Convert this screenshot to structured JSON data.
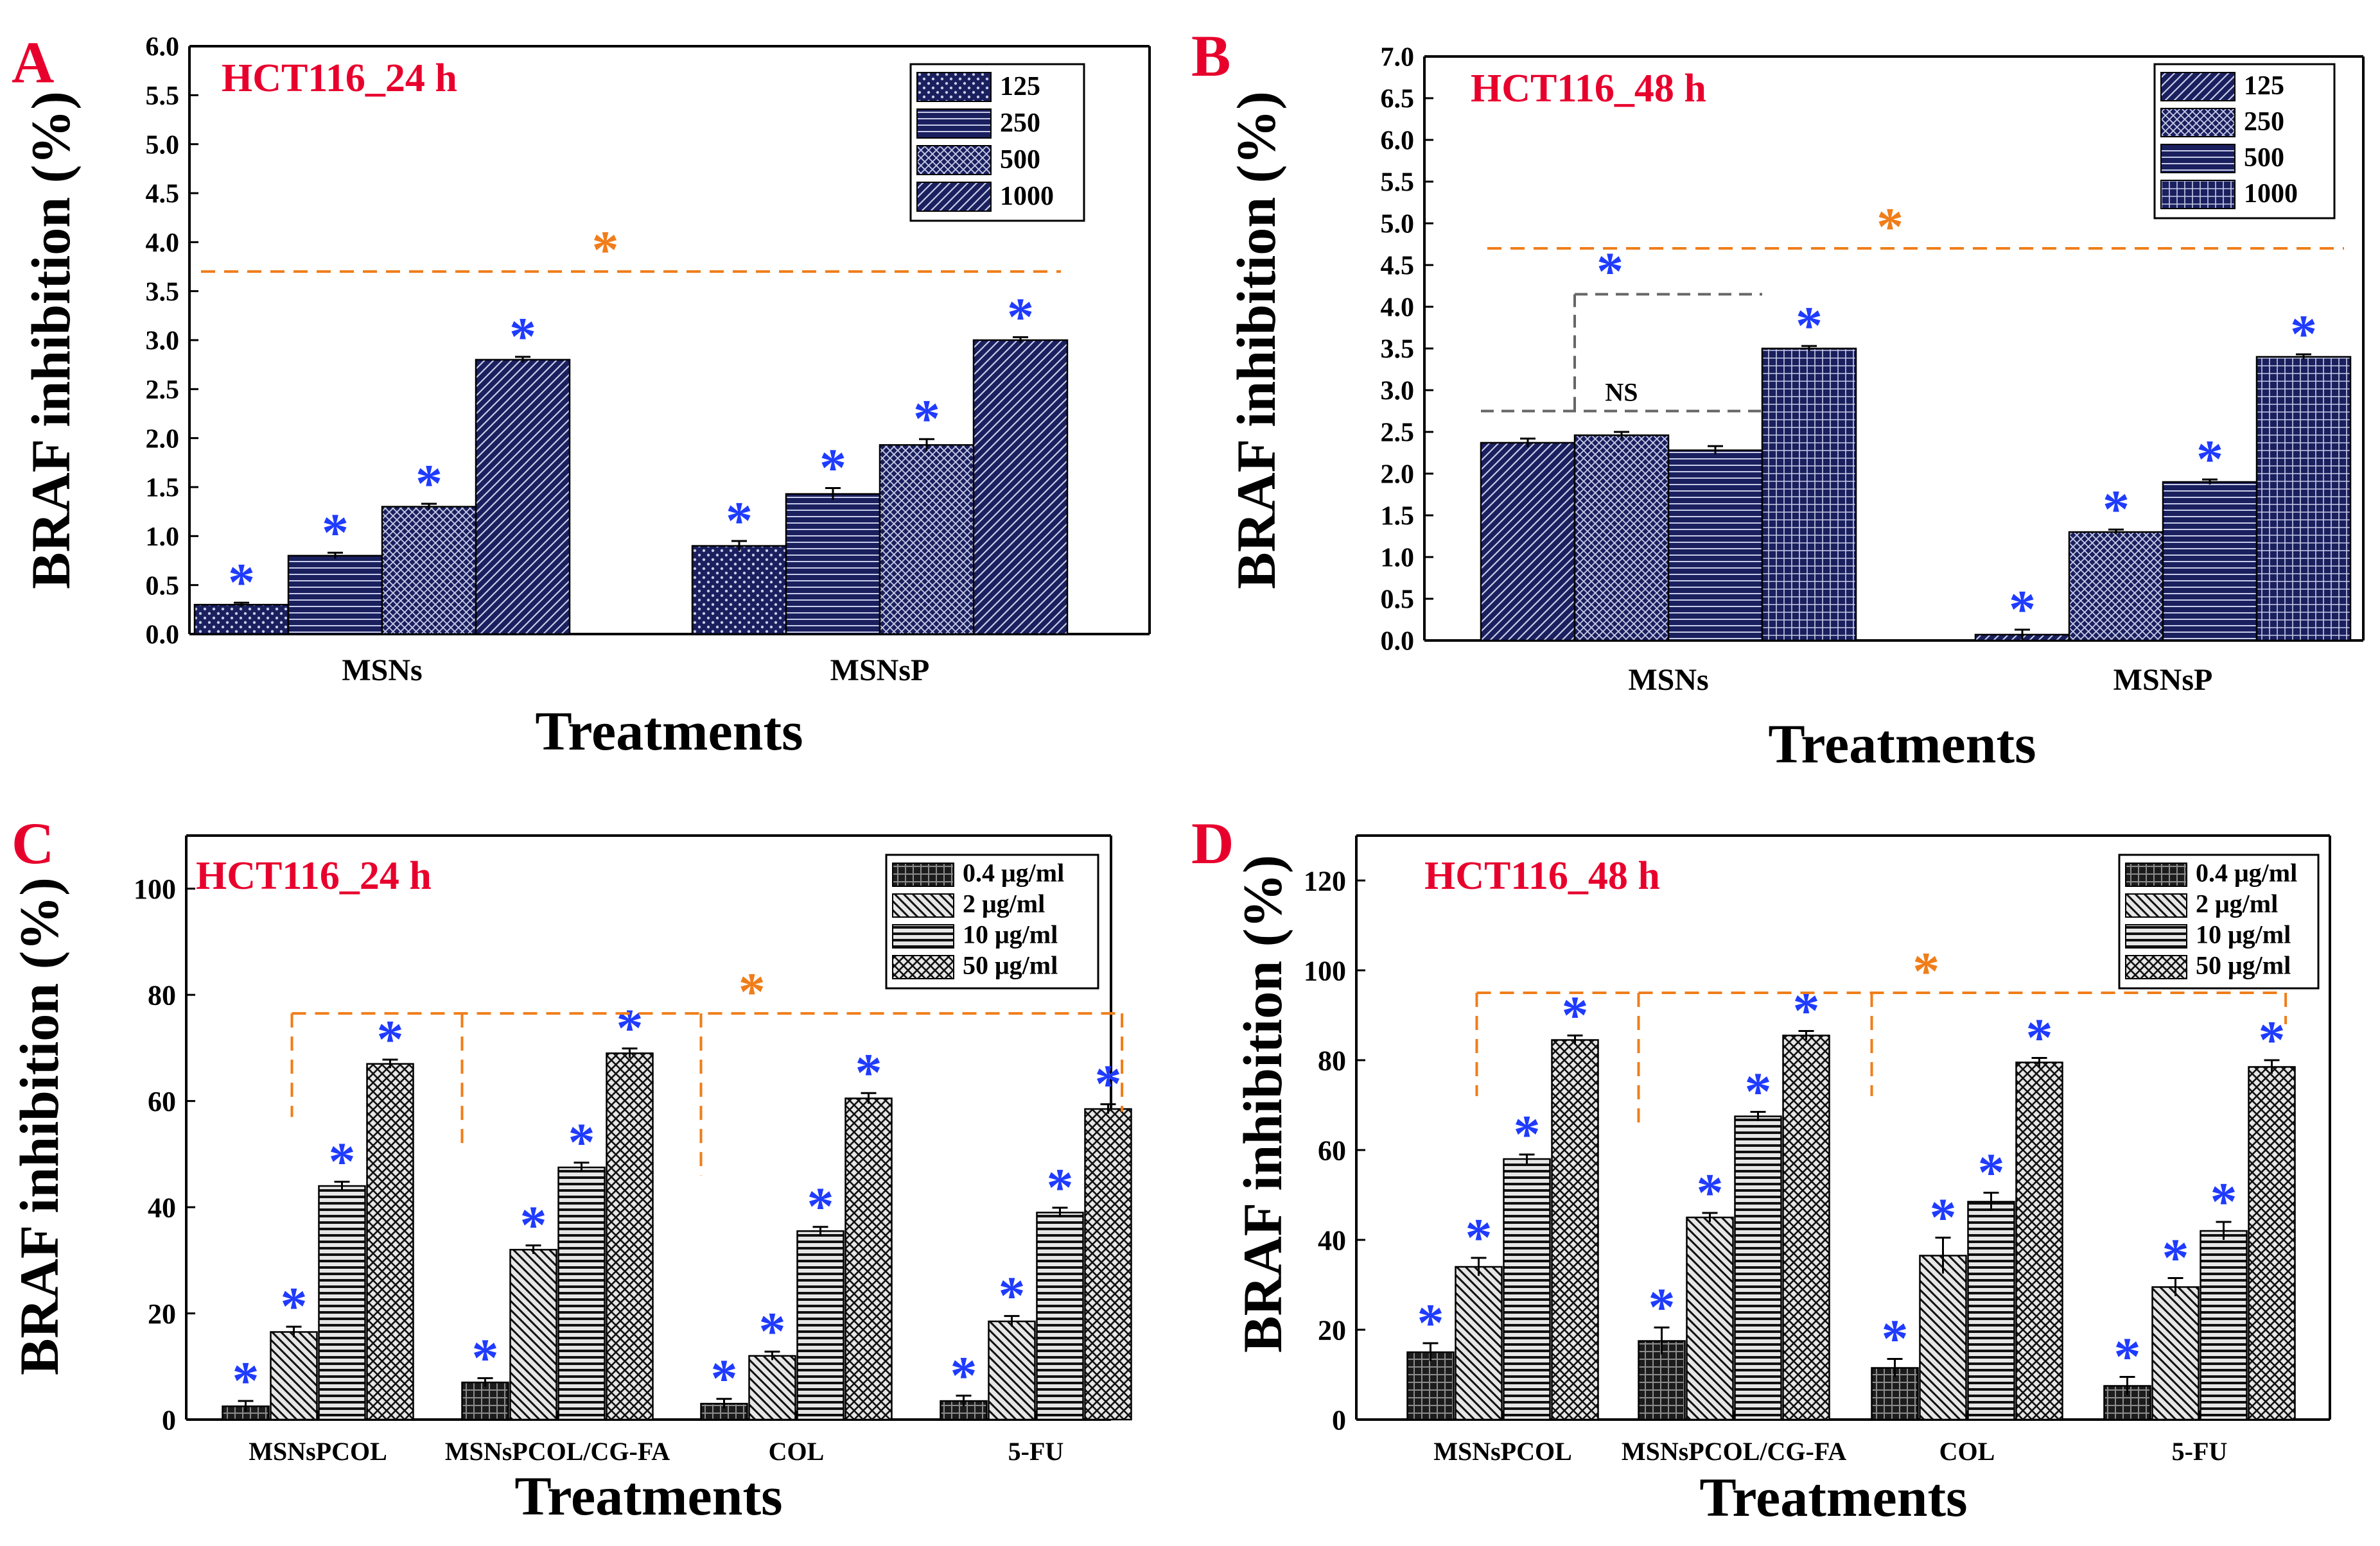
{
  "figure": {
    "xlabel": "Treatments",
    "ylabel": "BRAF inhibition (%)",
    "significance_symbol": "*",
    "ns_label": "NS",
    "colors": {
      "bar_fill": "#1a1f5e",
      "bar_fill_light": "#e6e6e6",
      "hatch_on_dark": "#c8cce8",
      "hatch_on_light": "#111111",
      "panel_letter": "#e8002d",
      "panel_title": "#e8002d",
      "significance": "#1f3bff",
      "group_significance": "#f07d1a",
      "ns_bracket": "#666666",
      "axis": "#000000"
    }
  },
  "chart_data": [
    {
      "panel": "A",
      "title": "HCT116_24 h",
      "type": "bar",
      "xlabel": "Treatments",
      "ylabel": "BRAF inhibition (%)",
      "categories": [
        "MSNs",
        "MSNsP"
      ],
      "ylim": [
        0,
        6.0
      ],
      "yticks": [
        "0.0",
        "0.5",
        "1.0",
        "1.5",
        "2.0",
        "2.5",
        "3.0",
        "3.5",
        "4.0",
        "4.5",
        "5.0",
        "5.5",
        "6.0"
      ],
      "legend_position": "top-right",
      "legend_style": "dark",
      "series": [
        {
          "name": "125",
          "pattern": "dots",
          "values": [
            0.3,
            0.9
          ],
          "errors": [
            0.02,
            0.05
          ],
          "sig": [
            true,
            true
          ]
        },
        {
          "name": "250",
          "pattern": "hlines",
          "values": [
            0.8,
            1.43
          ],
          "errors": [
            0.03,
            0.06
          ],
          "sig": [
            true,
            true
          ]
        },
        {
          "name": "500",
          "pattern": "crosshatch",
          "values": [
            1.3,
            1.93
          ],
          "errors": [
            0.03,
            0.06
          ],
          "sig": [
            true,
            true
          ]
        },
        {
          "name": "1000",
          "pattern": "diag",
          "values": [
            2.8,
            3.0
          ],
          "errors": [
            0.03,
            0.03
          ],
          "sig": [
            true,
            true
          ]
        }
      ],
      "group_significance": {
        "y": 3.7,
        "label": "*"
      }
    },
    {
      "panel": "B",
      "title": "HCT116_48 h",
      "type": "bar",
      "xlabel": "Treatments",
      "ylabel": "BRAF inhibition (%)",
      "categories": [
        "MSNs",
        "MSNsP"
      ],
      "ylim": [
        0,
        7.0
      ],
      "yticks": [
        "0.0",
        "0.5",
        "1.0",
        "1.5",
        "2.0",
        "2.5",
        "3.0",
        "3.5",
        "4.0",
        "4.5",
        "5.0",
        "5.5",
        "6.0",
        "6.5",
        "7.0"
      ],
      "legend_position": "top-right",
      "legend_style": "dark",
      "series": [
        {
          "name": "125",
          "pattern": "diag",
          "values": [
            2.37,
            0.07
          ],
          "errors": [
            0.05,
            0.06
          ],
          "sig": [
            false,
            true
          ]
        },
        {
          "name": "250",
          "pattern": "crosshatch",
          "values": [
            2.46,
            1.3
          ],
          "errors": [
            0.04,
            0.03
          ],
          "sig": [
            false,
            true
          ]
        },
        {
          "name": "500",
          "pattern": "hlines",
          "values": [
            2.28,
            1.9
          ],
          "errors": [
            0.05,
            0.03
          ],
          "sig": [
            false,
            true
          ]
        },
        {
          "name": "1000",
          "pattern": "grid",
          "values": [
            3.5,
            3.4
          ],
          "errors": [
            0.03,
            0.03
          ],
          "sig": [
            true,
            true
          ]
        }
      ],
      "group_significance": {
        "y": 4.7,
        "label": "*"
      },
      "ns_bracket": {
        "y": 2.75,
        "label": "NS"
      },
      "pair_bracket": {
        "y": 4.15,
        "label": "*"
      }
    },
    {
      "panel": "C",
      "title": "HCT116_24 h",
      "type": "bar",
      "xlabel": "Treatments",
      "ylabel": "BRAF inhibition (%)",
      "categories": [
        "MSNsPCOL",
        "MSNsPCOL/CG-FA",
        "COL",
        "5-FU"
      ],
      "ylim": [
        0,
        110
      ],
      "yticks": [
        "0",
        "20",
        "40",
        "60",
        "80",
        "100"
      ],
      "legend_position": "top-right",
      "legend_style": "light",
      "series": [
        {
          "name": "0.4 μg/ml",
          "pattern": "dark-grid",
          "values": [
            2.5,
            7.0,
            3.0,
            3.5
          ],
          "errors": [
            1.0,
            0.8,
            0.9,
            1.0
          ],
          "sig": [
            true,
            true,
            true,
            true
          ]
        },
        {
          "name": "2 μg/ml",
          "pattern": "diag",
          "values": [
            16.5,
            32.0,
            12.0,
            18.5
          ],
          "errors": [
            1.0,
            0.8,
            0.8,
            1.0
          ],
          "sig": [
            true,
            true,
            true,
            true
          ]
        },
        {
          "name": "10 μg/ml",
          "pattern": "hlines",
          "values": [
            44.0,
            47.5,
            35.5,
            39.0
          ],
          "errors": [
            0.8,
            0.9,
            0.8,
            0.9
          ],
          "sig": [
            true,
            true,
            true,
            true
          ]
        },
        {
          "name": "50 μg/ml",
          "pattern": "crosshatch",
          "values": [
            67.0,
            69.0,
            60.5,
            58.5
          ],
          "errors": [
            0.8,
            0.9,
            1.0,
            0.9
          ],
          "sig": [
            true,
            true,
            true,
            true
          ]
        }
      ],
      "group_significance": {
        "y": 76.5,
        "label": "*",
        "drop_to": [
          57,
          52,
          46,
          58
        ]
      }
    },
    {
      "panel": "D",
      "title": "HCT116_48 h",
      "type": "bar",
      "xlabel": "Treatments",
      "ylabel": "BRAF inhibition (%)",
      "categories": [
        "MSNsPCOL",
        "MSNsPCOL/CG-FA",
        "COL",
        "5-FU"
      ],
      "ylim": [
        0,
        130
      ],
      "yticks": [
        "0",
        "20",
        "40",
        "60",
        "80",
        "100",
        "120"
      ],
      "legend_position": "top-right",
      "legend_style": "light",
      "series": [
        {
          "name": "0.4 μg/ml",
          "pattern": "dark-grid",
          "values": [
            15.0,
            17.5,
            11.5,
            7.5
          ],
          "errors": [
            2.0,
            3.0,
            2.0,
            2.0
          ],
          "sig": [
            true,
            true,
            true,
            true
          ]
        },
        {
          "name": "2 μg/ml",
          "pattern": "diag",
          "values": [
            34.0,
            45.0,
            36.5,
            29.5
          ],
          "errors": [
            2.0,
            1.0,
            4.0,
            2.0
          ],
          "sig": [
            true,
            true,
            true,
            true
          ]
        },
        {
          "name": "10 μg/ml",
          "pattern": "hlines",
          "values": [
            58.0,
            67.5,
            48.5,
            42.0
          ],
          "errors": [
            1.0,
            1.0,
            2.0,
            2.0
          ],
          "sig": [
            true,
            true,
            true,
            true
          ]
        },
        {
          "name": "50 μg/ml",
          "pattern": "crosshatch",
          "values": [
            84.5,
            85.5,
            79.5,
            78.5
          ],
          "errors": [
            1.0,
            1.0,
            1.0,
            1.5
          ],
          "sig": [
            true,
            true,
            true,
            true
          ]
        }
      ],
      "group_significance": {
        "y": 95,
        "label": "*",
        "drop_to": [
          72,
          66,
          72,
          88
        ]
      }
    }
  ]
}
